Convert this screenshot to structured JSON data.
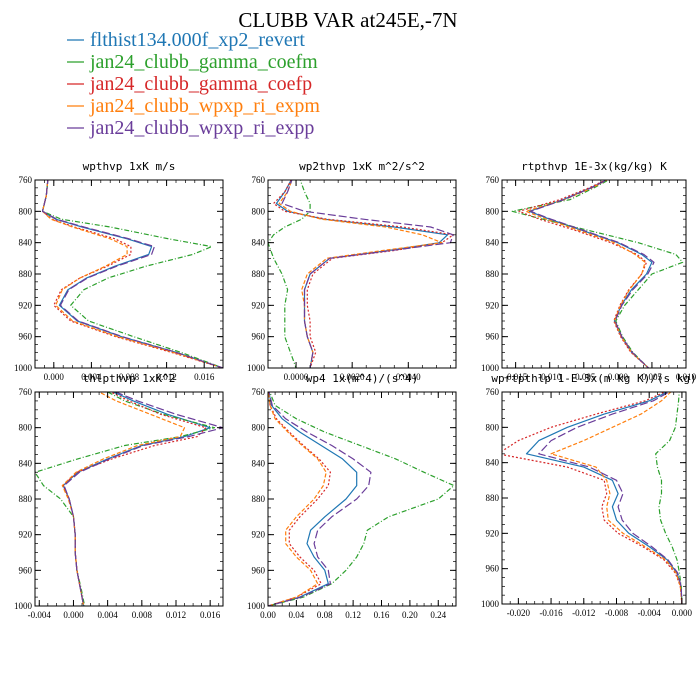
{
  "title": "CLUBB VAR at245E,-7N",
  "colors": {
    "flthist134.000f_xp2_revert": "#1f77b4",
    "jan24_clubb_gamma_coefm": "#2ca02c",
    "jan24_clubb_gamma_coefp": "#d62728",
    "jan24_clubb_wpxp_ri_expm": "#ff7f0e",
    "jan24_clubb_wpxp_ri_expp": "#6a3d9a"
  },
  "legend": [
    {
      "label": "flthist134.000f_xp2_revert",
      "color": "#1f77b4",
      "dash": ""
    },
    {
      "label": "jan24_clubb_gamma_coefm",
      "color": "#2ca02c",
      "dash": "5,2,1,2"
    },
    {
      "label": "jan24_clubb_gamma_coefp",
      "color": "#d62728",
      "dash": "2,2"
    },
    {
      "label": "jan24_clubb_wpxp_ri_expm",
      "color": "#ff7f0e",
      "dash": "4,2"
    },
    {
      "label": "jan24_clubb_wpxp_ri_expp",
      "color": "#6a3d9a",
      "dash": "8,3"
    }
  ],
  "chart_data": [
    {
      "type": "line",
      "title": "wpthvp  1xK m/s",
      "xlim": [
        -0.002,
        0.018
      ],
      "ylim": [
        760,
        1000
      ],
      "y_inverted": true,
      "xticks": [
        0.0,
        0.004,
        0.008,
        0.012,
        0.016
      ],
      "xtick_labels": [
        "0.000",
        "0.004",
        "0.008",
        "0.012",
        "0.016"
      ],
      "yticks": [
        760,
        800,
        840,
        880,
        920,
        960,
        1000
      ],
      "y": [
        755,
        780,
        800,
        810,
        820,
        835,
        845,
        855,
        870,
        885,
        900,
        920,
        940,
        960,
        980,
        1000
      ],
      "series": [
        {
          "values": [
            -0.0006,
            -0.0008,
            -0.0012,
            0.0002,
            0.003,
            0.0078,
            0.0104,
            0.0101,
            0.0065,
            0.0035,
            0.0015,
            0.0006,
            0.0025,
            0.0072,
            0.013,
            0.018
          ]
        },
        {
          "values": [
            -0.0006,
            -0.0008,
            -0.0012,
            0.0008,
            0.006,
            0.0122,
            0.0168,
            0.0148,
            0.0098,
            0.0058,
            0.0032,
            0.0018,
            0.0037,
            0.0085,
            0.0135,
            0.018
          ]
        },
        {
          "values": [
            -0.0006,
            -0.0008,
            -0.0012,
            -0.0002,
            0.0022,
            0.0065,
            0.0082,
            0.0082,
            0.0057,
            0.0028,
            0.0008,
            0.0,
            0.0018,
            0.0066,
            0.0125,
            0.018
          ]
        },
        {
          "values": [
            -0.0006,
            -0.0008,
            -0.0012,
            -0.0003,
            0.002,
            0.006,
            0.0078,
            0.0078,
            0.0055,
            0.0028,
            0.0009,
            0.0002,
            0.002,
            0.0068,
            0.0127,
            0.018
          ]
        },
        {
          "values": [
            -0.0006,
            -0.0008,
            -0.0012,
            0.0003,
            0.0032,
            0.008,
            0.0107,
            0.0104,
            0.0067,
            0.0036,
            0.0016,
            0.0007,
            0.0026,
            0.0073,
            0.013,
            0.018
          ]
        }
      ]
    },
    {
      "type": "line",
      "title": "wp2thvp  1xK m^2/s^2",
      "xlim": [
        -0.001,
        0.0057
      ],
      "ylim": [
        760,
        1000
      ],
      "y_inverted": true,
      "xticks": [
        0.0,
        0.002,
        0.004
      ],
      "xtick_labels": [
        "0.0000",
        "0.0020",
        "0.0040"
      ],
      "yticks": [
        760,
        800,
        840,
        880,
        920,
        960,
        1000
      ],
      "y": [
        755,
        775,
        790,
        800,
        810,
        820,
        830,
        840,
        850,
        860,
        880,
        900,
        920,
        940,
        960,
        980,
        1000
      ],
      "series": [
        {
          "values": [
            -0.0001,
            -0.0004,
            -0.0007,
            -0.0003,
            0.001,
            0.0035,
            0.0054,
            0.0051,
            0.0033,
            0.0012,
            0.0005,
            0.0003,
            0.0003,
            0.0003,
            0.0004,
            0.0006,
            0.0005
          ]
        },
        {
          "values": [
            0.0001,
            0.0003,
            0.0005,
            0.0005,
            0.0002,
            -0.0004,
            -0.0008,
            -0.001,
            -0.0009,
            -0.0008,
            -0.0005,
            -0.0003,
            -0.0004,
            -0.0004,
            -0.0004,
            -0.0002,
            0.0
          ]
        },
        {
          "values": [
            -0.0001,
            -0.0004,
            -0.0008,
            -0.0004,
            0.0011,
            0.0038,
            0.0056,
            0.0052,
            0.0035,
            0.0013,
            0.0006,
            0.0004,
            0.0004,
            0.0005,
            0.0005,
            0.0007,
            0.0005
          ]
        },
        {
          "values": [
            -0.0001,
            -0.0003,
            -0.0006,
            -0.0002,
            0.0009,
            0.0032,
            0.0045,
            0.0052,
            0.0031,
            0.0011,
            0.0004,
            0.0002,
            0.0003,
            0.0003,
            0.0004,
            0.0006,
            0.0005
          ]
        },
        {
          "values": [
            -0.0001,
            -0.0003,
            -0.0005,
            0.0003,
            0.0024,
            0.0048,
            0.0056,
            0.0055,
            0.0034,
            0.0012,
            0.0005,
            0.0003,
            0.0003,
            0.0003,
            0.0004,
            0.0006,
            0.0005
          ]
        }
      ]
    },
    {
      "type": "line",
      "title": "rtpthvp  1E-3x(kg/kg) K",
      "xlim": [
        -0.017,
        0.01
      ],
      "ylim": [
        760,
        1000
      ],
      "y_inverted": true,
      "xticks": [
        -0.015,
        -0.01,
        -0.005,
        0.0,
        0.005,
        0.01
      ],
      "xtick_labels": [
        "-0.015",
        "-0.010",
        "-0.005",
        "0.000",
        "0.005",
        "0.010"
      ],
      "yticks": [
        760,
        800,
        840,
        880,
        920,
        960,
        1000
      ],
      "y": [
        755,
        770,
        785,
        800,
        810,
        825,
        840,
        855,
        865,
        880,
        900,
        920,
        940,
        960,
        980,
        1000
      ],
      "series": [
        {
          "values": [
            -0.0005,
            -0.004,
            -0.008,
            -0.013,
            -0.01,
            -0.005,
            0.0,
            0.0035,
            0.005,
            0.0042,
            0.002,
            0.0005,
            -0.0005,
            0.0005,
            0.002,
            0.0045
          ]
        },
        {
          "values": [
            -0.0003,
            -0.0035,
            -0.007,
            -0.0155,
            -0.011,
            -0.004,
            0.003,
            0.0085,
            0.0095,
            0.005,
            0.003,
            0.001,
            -0.0003,
            0.0007,
            0.0022,
            0.0045
          ]
        },
        {
          "values": [
            -0.0006,
            -0.0042,
            -0.0085,
            -0.0145,
            -0.0115,
            -0.006,
            -0.001,
            0.0028,
            0.0042,
            0.0035,
            0.0016,
            0.0003,
            -0.0006,
            0.0004,
            0.0019,
            0.0045
          ]
        },
        {
          "values": [
            -0.0005,
            -0.0038,
            -0.0078,
            -0.0135,
            -0.0105,
            -0.0055,
            -0.0005,
            0.0025,
            0.004,
            0.0035,
            0.0017,
            0.0004,
            -0.0005,
            0.0005,
            0.002,
            0.0045
          ]
        },
        {
          "values": [
            -0.0005,
            -0.0039,
            -0.0079,
            -0.0128,
            -0.0098,
            -0.0048,
            0.0002,
            0.0038,
            0.0053,
            0.0044,
            0.0022,
            0.0006,
            -0.0004,
            0.0006,
            0.0021,
            0.0045
          ]
        }
      ]
    },
    {
      "type": "line",
      "title": "thlpthvp  1xK^2",
      "xlim": [
        -0.0045,
        0.0175
      ],
      "ylim": [
        760,
        1000
      ],
      "y_inverted": true,
      "xticks": [
        -0.004,
        0.0,
        0.004,
        0.008,
        0.012,
        0.016
      ],
      "xtick_labels": [
        "-0.004",
        "0.000",
        "0.004",
        "0.008",
        "0.012",
        "0.016"
      ],
      "yticks": [
        760,
        800,
        840,
        880,
        920,
        960,
        1000
      ],
      "y": [
        755,
        770,
        785,
        800,
        810,
        820,
        835,
        850,
        865,
        880,
        900,
        920,
        940,
        960,
        980,
        1000
      ],
      "series": [
        {
          "values": [
            0.0035,
            0.007,
            0.011,
            0.016,
            0.013,
            0.008,
            0.004,
            0.0005,
            -0.0012,
            -0.0005,
            0.0,
            0.0002,
            0.0002,
            0.0004,
            0.0008,
            0.0012
          ]
        },
        {
          "values": [
            0.003,
            0.006,
            0.0105,
            0.0165,
            0.0125,
            0.006,
            0.0005,
            -0.0045,
            -0.0035,
            -0.0015,
            0.0,
            0.0002,
            0.0002,
            0.0004,
            0.0009,
            0.0013
          ]
        },
        {
          "values": [
            0.0033,
            0.0065,
            0.0102,
            0.0155,
            0.0145,
            0.0095,
            0.0045,
            0.0004,
            -0.0012,
            -0.0005,
            0.0,
            0.0002,
            0.0002,
            0.0004,
            0.0008,
            0.0012
          ]
        },
        {
          "values": [
            0.002,
            0.005,
            0.009,
            0.013,
            0.0125,
            0.0075,
            0.0035,
            0.0003,
            -0.0013,
            -0.0006,
            0.0,
            0.0002,
            0.0002,
            0.0004,
            0.0008,
            0.0012
          ]
        },
        {
          "values": [
            0.0037,
            0.0075,
            0.012,
            0.0175,
            0.0135,
            0.0082,
            0.0042,
            0.0007,
            -0.0011,
            -0.0005,
            0.0,
            0.0002,
            0.0002,
            0.0004,
            0.0008,
            0.0012
          ]
        }
      ]
    },
    {
      "type": "line",
      "title": "wp4  1x(m^4)/(s^4)",
      "xlim": [
        0.0,
        0.265
      ],
      "ylim": [
        760,
        1000
      ],
      "y_inverted": true,
      "xticks": [
        0.0,
        0.04,
        0.08,
        0.12,
        0.16,
        0.2,
        0.24
      ],
      "xtick_labels": [
        "0.00",
        "0.04",
        "0.08",
        "0.12",
        "0.16",
        "0.20",
        "0.24"
      ],
      "yticks": [
        760,
        800,
        840,
        880,
        920,
        960,
        1000
      ],
      "y": [
        755,
        775,
        790,
        805,
        820,
        835,
        850,
        865,
        880,
        900,
        915,
        930,
        945,
        960,
        975,
        990,
        1000
      ],
      "series": [
        {
          "values": [
            0.0,
            0.005,
            0.02,
            0.045,
            0.075,
            0.105,
            0.125,
            0.125,
            0.11,
            0.08,
            0.06,
            0.055,
            0.065,
            0.08,
            0.085,
            0.045,
            0.0
          ]
        },
        {
          "values": [
            0.0,
            0.01,
            0.04,
            0.08,
            0.13,
            0.18,
            0.22,
            0.262,
            0.24,
            0.17,
            0.14,
            0.135,
            0.125,
            0.11,
            0.09,
            0.05,
            0.0
          ]
        },
        {
          "values": [
            0.0,
            0.003,
            0.012,
            0.03,
            0.05,
            0.072,
            0.088,
            0.085,
            0.07,
            0.045,
            0.03,
            0.03,
            0.045,
            0.065,
            0.075,
            0.04,
            0.0
          ]
        },
        {
          "values": [
            0.0,
            0.003,
            0.01,
            0.028,
            0.048,
            0.07,
            0.082,
            0.078,
            0.065,
            0.04,
            0.025,
            0.025,
            0.04,
            0.06,
            0.07,
            0.04,
            0.0
          ]
        },
        {
          "values": [
            0.0,
            0.006,
            0.025,
            0.055,
            0.09,
            0.12,
            0.145,
            0.142,
            0.125,
            0.09,
            0.07,
            0.065,
            0.07,
            0.085,
            0.088,
            0.047,
            0.0
          ]
        }
      ]
    },
    {
      "type": "line",
      "title": "wprtpthlp  1-E-3x(m kg K)/(s kg)",
      "xlim": [
        -0.022,
        0.0005
      ],
      "ylim": [
        760,
        1000
      ],
      "y_inverted": true,
      "xticks": [
        -0.02,
        -0.016,
        -0.012,
        -0.008,
        -0.004,
        0.0
      ],
      "xtick_labels": [
        "-0.020",
        "-0.016",
        "-0.012",
        "-0.008",
        "-0.004",
        "0.000"
      ],
      "yticks": [
        760,
        800,
        840,
        880,
        920,
        960,
        1000
      ],
      "y": [
        755,
        770,
        785,
        800,
        815,
        830,
        845,
        860,
        875,
        890,
        905,
        920,
        935,
        950,
        965,
        980,
        1000
      ],
      "series": [
        {
          "values": [
            -0.0007,
            -0.004,
            -0.0095,
            -0.014,
            -0.0175,
            -0.019,
            -0.012,
            -0.0085,
            -0.0078,
            -0.0085,
            -0.008,
            -0.0065,
            -0.004,
            -0.0018,
            -0.0006,
            -0.0001,
            0.0
          ]
        },
        {
          "values": [
            -0.0003,
            -0.0004,
            -0.0006,
            -0.0008,
            -0.0015,
            -0.0032,
            -0.003,
            -0.0025,
            -0.0025,
            -0.0028,
            -0.0026,
            -0.002,
            -0.0012,
            -0.0006,
            -0.0003,
            -0.0001,
            0.0
          ]
        },
        {
          "values": [
            -0.0009,
            -0.0045,
            -0.0105,
            -0.016,
            -0.02,
            -0.0225,
            -0.014,
            -0.0095,
            -0.0092,
            -0.0098,
            -0.0095,
            -0.0078,
            -0.0048,
            -0.0022,
            -0.0008,
            -0.0002,
            0.0
          ]
        },
        {
          "values": [
            -0.0008,
            -0.0025,
            -0.005,
            -0.0085,
            -0.012,
            -0.016,
            -0.0105,
            -0.0092,
            -0.0088,
            -0.0092,
            -0.009,
            -0.0072,
            -0.0045,
            -0.002,
            -0.0007,
            -0.0002,
            0.0
          ]
        },
        {
          "values": [
            -0.0006,
            -0.0035,
            -0.0085,
            -0.0128,
            -0.016,
            -0.0175,
            -0.0113,
            -0.008,
            -0.0072,
            -0.0078,
            -0.0073,
            -0.006,
            -0.0037,
            -0.0017,
            -0.0005,
            -0.0001,
            0.0
          ]
        }
      ]
    }
  ]
}
